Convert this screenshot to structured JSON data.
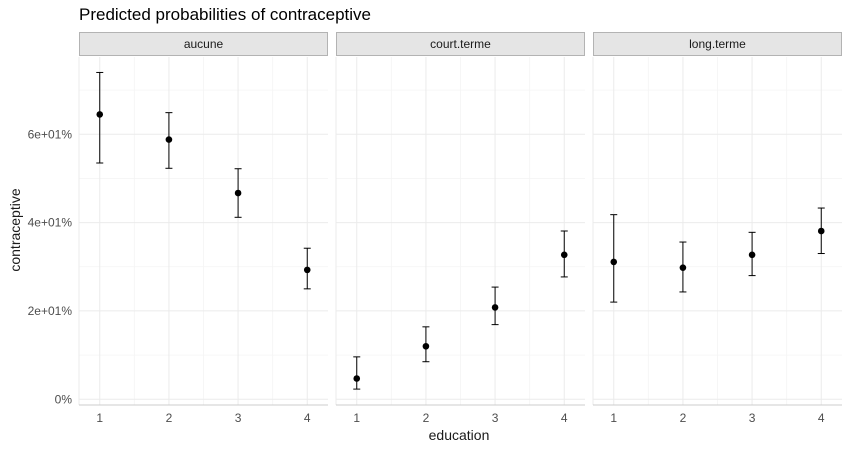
{
  "chart_data": {
    "type": "scatter",
    "title": "Predicted probabilities of contraceptive",
    "xlabel": "education",
    "ylabel": "contraceptive",
    "x_ticks": [
      "1",
      "2",
      "3",
      "4"
    ],
    "y_ticks": [
      {
        "value": 0,
        "label": "0%"
      },
      {
        "value": 20,
        "label": "2e+01%"
      },
      {
        "value": 40,
        "label": "4e+01%"
      },
      {
        "value": 60,
        "label": "6e+01%"
      }
    ],
    "ylim": [
      -1.3,
      77.5
    ],
    "xlim": [
      0.7,
      4.3
    ],
    "grid": true,
    "error_bars": true,
    "panels": [
      {
        "label": "aucune",
        "points": [
          {
            "x": 1,
            "y": 64.5,
            "low": 53.5,
            "high": 74.0
          },
          {
            "x": 2,
            "y": 58.8,
            "low": 52.3,
            "high": 64.9
          },
          {
            "x": 3,
            "y": 46.7,
            "low": 41.2,
            "high": 52.2
          },
          {
            "x": 4,
            "y": 29.3,
            "low": 25.0,
            "high": 34.2
          }
        ]
      },
      {
        "label": "court.terme",
        "points": [
          {
            "x": 1,
            "y": 4.7,
            "low": 2.3,
            "high": 9.6
          },
          {
            "x": 2,
            "y": 12.0,
            "low": 8.5,
            "high": 16.4
          },
          {
            "x": 3,
            "y": 20.8,
            "low": 16.9,
            "high": 25.4
          },
          {
            "x": 4,
            "y": 32.7,
            "low": 27.7,
            "high": 38.1
          }
        ]
      },
      {
        "label": "long.terme",
        "points": [
          {
            "x": 1,
            "y": 31.1,
            "low": 22.0,
            "high": 41.8
          },
          {
            "x": 2,
            "y": 29.8,
            "low": 24.3,
            "high": 35.6
          },
          {
            "x": 3,
            "y": 32.7,
            "low": 28.0,
            "high": 37.8
          },
          {
            "x": 4,
            "y": 38.1,
            "low": 33.0,
            "high": 43.3
          }
        ]
      }
    ],
    "colors": {
      "strip_fill": "#e5e5e5",
      "strip_border": "#b3b3b3",
      "grid_major": "#ebebeb",
      "grid_minor": "#f4f4f4",
      "point": "#000000",
      "axis_line": "#cccccc"
    }
  }
}
